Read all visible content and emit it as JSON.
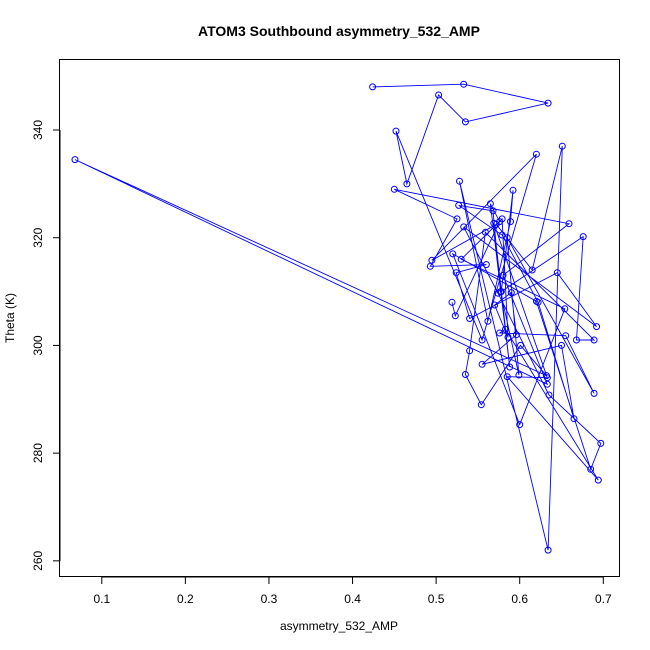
{
  "chart_data": {
    "type": "scatter",
    "mode": "lines+markers",
    "title": "ATOM3 Southbound asymmetry_532_AMP",
    "xlabel": "asymmetry_532_AMP",
    "ylabel": "Theta (K)",
    "xlim": [
      0.05,
      0.72
    ],
    "ylim": [
      257,
      353
    ],
    "x_ticks": [
      0.1,
      0.2,
      0.3,
      0.4,
      0.5,
      0.6,
      0.7
    ],
    "x_tick_labels": [
      "0.1",
      "0.2",
      "0.3",
      "0.4",
      "0.5",
      "0.6",
      "0.7"
    ],
    "y_ticks": [
      260,
      280,
      300,
      320,
      340
    ],
    "y_tick_labels": [
      "260",
      "280",
      "300",
      "320",
      "340"
    ],
    "grid": false,
    "color": "#0000ff",
    "series": [
      {
        "points": [
          [
            0.424,
            348.0
          ],
          [
            0.533,
            348.5
          ],
          [
            0.634,
            345.0
          ],
          [
            0.535,
            341.5
          ],
          [
            0.503,
            346.5
          ],
          [
            0.465,
            330.0
          ],
          [
            0.452,
            339.8
          ],
          [
            0.555,
            301.0
          ],
          [
            0.62,
            335.5
          ],
          [
            0.495,
            315.8
          ],
          [
            0.572,
            322.5
          ],
          [
            0.615,
            314.0
          ],
          [
            0.651,
            337.0
          ],
          [
            0.634,
            262.0
          ],
          [
            0.528,
            330.5
          ],
          [
            0.562,
            304.5
          ],
          [
            0.589,
            323.0
          ],
          [
            0.592,
            328.8
          ],
          [
            0.578,
            310.0
          ],
          [
            0.676,
            320.2
          ],
          [
            0.668,
            301.0
          ],
          [
            0.689,
            301.0
          ],
          [
            0.559,
            321.0
          ],
          [
            0.54,
            299.0
          ],
          [
            0.535,
            294.6
          ],
          [
            0.554,
            289.0
          ],
          [
            0.601,
            300.0
          ],
          [
            0.632,
            294.4
          ],
          [
            0.068,
            334.5
          ],
          [
            0.633,
            292.8
          ],
          [
            0.58,
            313.0
          ],
          [
            0.659,
            322.6
          ],
          [
            0.45,
            329.0
          ],
          [
            0.525,
            323.5
          ],
          [
            0.493,
            314.7
          ],
          [
            0.56,
            315.0
          ],
          [
            0.524,
            313.5
          ],
          [
            0.54,
            305.0
          ],
          [
            0.645,
            313.5
          ],
          [
            0.692,
            303.5
          ],
          [
            0.533,
            322.0
          ],
          [
            0.574,
            309.7
          ],
          [
            0.635,
            290.8
          ],
          [
            0.697,
            281.8
          ],
          [
            0.685,
            277.0
          ],
          [
            0.62,
            308.2
          ],
          [
            0.52,
            317.0
          ],
          [
            0.6,
            285.3
          ],
          [
            0.654,
            306.8
          ],
          [
            0.53,
            316.0
          ],
          [
            0.579,
            323.5
          ],
          [
            0.586,
            301.5
          ],
          [
            0.57,
            307.5
          ],
          [
            0.59,
            309.8
          ],
          [
            0.596,
            302.0
          ],
          [
            0.555,
            296.5
          ],
          [
            0.65,
            300.0
          ],
          [
            0.665,
            286.4
          ],
          [
            0.622,
            308.0
          ],
          [
            0.579,
            320.5
          ],
          [
            0.527,
            326.0
          ],
          [
            0.568,
            325.0
          ],
          [
            0.577,
            310.0
          ],
          [
            0.599,
            294.5
          ],
          [
            0.585,
            320.0
          ],
          [
            0.689,
            291.1
          ],
          [
            0.655,
            301.8
          ],
          [
            0.576,
            302.3
          ],
          [
            0.583,
            303.0
          ],
          [
            0.694,
            275.0
          ],
          [
            0.585,
            294.2
          ],
          [
            0.633,
            294.0
          ],
          [
            0.569,
            322.7
          ],
          [
            0.588,
            296.0
          ],
          [
            0.565,
            326.3
          ],
          [
            0.576,
            323.0
          ],
          [
            0.523,
            305.5
          ],
          [
            0.519,
            308.0
          ]
        ]
      }
    ]
  }
}
